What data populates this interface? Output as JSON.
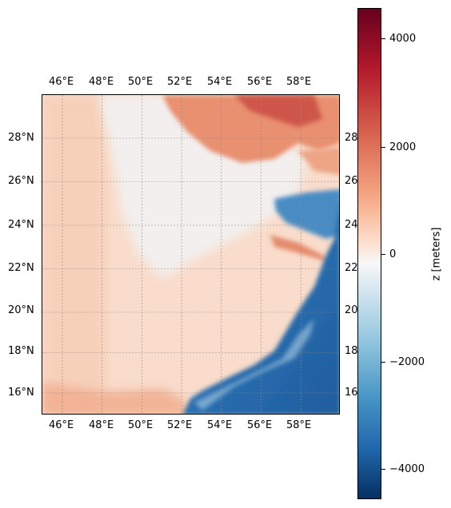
{
  "map": {
    "lon_labels": [
      "46°E",
      "48°E",
      "50°E",
      "52°E",
      "54°E",
      "56°E",
      "58°E"
    ],
    "lat_labels": [
      "28°N",
      "26°N",
      "24°N",
      "22°N",
      "20°N",
      "18°N",
      "16°N"
    ],
    "right_lat_labels": [
      "28",
      "26",
      "24",
      "22",
      "20",
      "18",
      "16"
    ],
    "extent": {
      "lon_min": 45,
      "lon_max": 60,
      "lat_min": 15,
      "lat_max": 30
    },
    "gridlines": true
  },
  "colorbar": {
    "title": "z [meters]",
    "ticks": [
      "4000",
      "2000",
      "0",
      "−2000",
      "−4000"
    ],
    "range": [
      -4600,
      4600
    ],
    "colormap": "RdBu_r",
    "colors": [
      "#67001f",
      "#b2182b",
      "#f4a582",
      "#f7f7f7",
      "#92c5de",
      "#2166ac",
      "#053061"
    ]
  }
}
